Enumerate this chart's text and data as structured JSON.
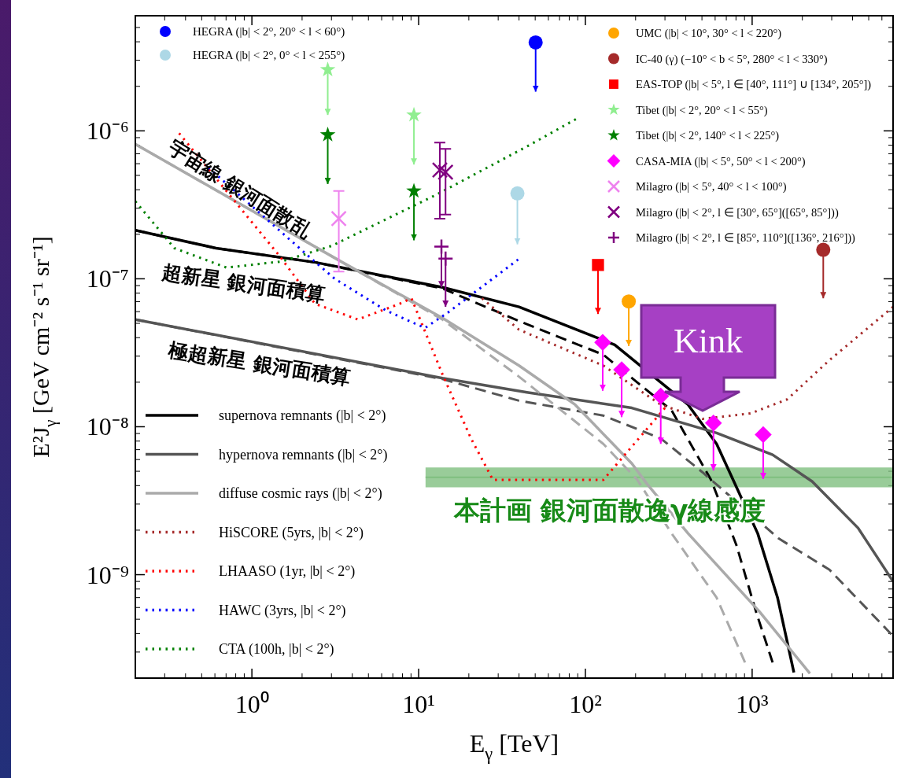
{
  "chart_data": {
    "type": "line",
    "log": "xy",
    "xlim": [
      0.2,
      7000
    ],
    "ylim": [
      2e-10,
      6e-06
    ],
    "xticks": [
      {
        "value": 1,
        "label": "10⁰"
      },
      {
        "value": 10,
        "label": "10¹"
      },
      {
        "value": 100,
        "label": "10²"
      },
      {
        "value": 1000,
        "label": "10³"
      }
    ],
    "yticks": [
      {
        "value": 1e-09,
        "label": "10⁻⁹"
      },
      {
        "value": 1e-08,
        "label": "10⁻⁸"
      },
      {
        "value": 1e-07,
        "label": "10⁻⁷"
      },
      {
        "value": 1e-06,
        "label": "10⁻⁶"
      }
    ],
    "xlabel": "E$_{γ}$ [TeV]",
    "ylabel": "E²J$_{γ}$ [GeV cm⁻² s⁻¹ sr⁻¹]",
    "legend": "top right",
    "series": [
      {
        "name": "supernova remnants (|b| < 2°)",
        "line_style": "solid",
        "color": "#000000",
        "x": [
          0.2,
          0.61,
          2.42,
          13.9,
          40,
          150,
          413,
          612,
          769,
          1080,
          1420,
          1780
        ],
        "values": [
          2.13e-07,
          1.61e-07,
          1.29e-07,
          8.75e-08,
          6.46e-08,
          3.58e-08,
          1.41e-08,
          7.66e-09,
          4.37e-09,
          1.9e-09,
          7e-10,
          2.18e-10
        ]
      },
      {
        "line_style": "dashed",
        "color": "#000000",
        "x": [
          0.2,
          0.61,
          2.42,
          13.9,
          40,
          128,
          329,
          567,
          804,
          1056,
          1327
        ],
        "values": [
          2.13e-07,
          1.61e-07,
          1.29e-07,
          8.6e-08,
          5.18e-08,
          3.07e-08,
          1.29e-08,
          4.37e-09,
          1.59e-09,
          5.6e-10,
          2.55e-10
        ]
      },
      {
        "name": "hypernova remnants (|b| < 2°)",
        "line_style": "solid",
        "color": "#555555",
        "x": [
          0.2,
          13.9,
          44.6,
          190,
          612,
          1327,
          2290,
          4315,
          7000
        ],
        "values": [
          5.31e-08,
          2.13e-08,
          1.71e-08,
          1.34e-08,
          9.08e-09,
          6.46e-09,
          4.27e-09,
          2.07e-09,
          9e-10
        ]
      },
      {
        "line_style": "dashed",
        "color": "#555555",
        "x": [
          0.2,
          13.9,
          40,
          128,
          283,
          503,
          1450,
          2910,
          6830
        ],
        "values": [
          5.31e-08,
          2.1e-08,
          1.5e-08,
          1.19e-08,
          8.34e-09,
          4.93e-09,
          1.75e-09,
          1.08e-09,
          3.96e-10
        ]
      },
      {
        "name": "diffuse cosmic rays (|b| < 2°)",
        "line_style": "solid",
        "color": "#aaaaaa",
        "x": [
          0.2,
          3.5,
          13.9,
          40,
          86.8,
          190,
          232,
          413,
          1105,
          2220
        ],
        "values": [
          8.13e-07,
          1.29e-07,
          5.43e-08,
          2.59e-08,
          1.41e-08,
          5.64e-09,
          4.16e-09,
          1.9e-09,
          5.64e-10,
          2.15e-10
        ]
      },
      {
        "line_style": "dashed",
        "color": "#aaaaaa",
        "x": [
          0.2,
          3.5,
          13.9,
          40,
          128,
          205,
          329,
          612,
          906
        ],
        "values": [
          8.13e-07,
          1.29e-07,
          5.3e-08,
          2.18e-08,
          7.66e-09,
          4.37e-09,
          1.9e-09,
          7e-10,
          2.55e-10
        ]
      },
      {
        "name": "HiSCORE (5yrs, |b| < 2°)",
        "line_style": "dotted",
        "color": "#a52a2a",
        "x": [
          24,
          40,
          128,
          283,
          503,
          977,
          1620,
          2910,
          7000
        ],
        "values": [
          7.38e-08,
          4.53e-08,
          2.59e-08,
          1.41e-08,
          1.13e-08,
          1.23e-08,
          1.53e-08,
          2.82e-08,
          6.46e-08
        ]
      },
      {
        "name": "LHAASO (1yr, |b| < 2°)",
        "line_style": "dotted",
        "color": "#ff0000",
        "x": [
          0.366,
          1.47,
          2.39,
          4.32,
          7.7,
          9.06,
          13.9,
          20.6,
          27.9,
          128,
          300
        ],
        "values": [
          9.64e-07,
          1.42e-07,
          6.78e-08,
          5.31e-08,
          6.78e-08,
          7.38e-08,
          2.26e-08,
          8.34e-09,
          4.37e-09,
          4.37e-09,
          1.34e-08
        ]
      },
      {
        "name": "HAWC (3yrs, |b| < 2°)",
        "line_style": "dotted",
        "color": "#0000ff",
        "x": [
          0.548,
          2.27,
          3.14,
          6.32,
          10.9,
          15,
          39.5
        ],
        "values": [
          5.64e-07,
          1.37e-07,
          1e-07,
          6.14e-08,
          4.65e-08,
          5.92e-08,
          1.35e-07
        ]
      },
      {
        "name": "CTA (100h, |b| < 2°)",
        "line_style": "dotted",
        "color": "#008000",
        "x": [
          0.2,
          0.343,
          0.705,
          1.51,
          3.01,
          12.4,
          44.6,
          87.7
        ],
        "values": [
          3.34e-07,
          1.61e-07,
          1.19e-07,
          1.31e-07,
          1.67e-07,
          3.64e-07,
          7.84e-07,
          1.2e-06
        ]
      },
      {
        "line_style": "solid",
        "color": "#7fbf7f",
        "x": [
          11,
          7000
        ],
        "values": [
          4.55e-09,
          4.55e-09
        ],
        "lower": [
          3.9e-09,
          3.9e-09
        ],
        "upper": [
          5.3e-09,
          5.3e-09
        ]
      },
      {
        "name": "HEGRA (|b| < 2°, 20° < l < 60°)",
        "type": "scatter",
        "marker": "circle",
        "color": "#0000ff",
        "x": [
          50.3
        ],
        "values": [
          3.96e-06
        ],
        "errors": [
          [
            1.84e-06,
            3.96e-06
          ]
        ]
      },
      {
        "name": "HEGRA (|b| < 2°, 0° < l < 255°)",
        "type": "scatter",
        "marker": "circle",
        "color": "#add8e6",
        "x": [
          39.1
        ],
        "values": [
          3.78e-07
        ],
        "errors": [
          [
            1.71e-07,
            3.78e-07
          ]
        ]
      },
      {
        "name": "UMC (|b| < 10°, 30° < l < 220°)",
        "type": "scatter",
        "marker": "circle",
        "color": "#ffa500",
        "x": [
          182
        ],
        "values": [
          7.03e-08
        ],
        "errors": [
          [
            3.51e-08,
            7.03e-08
          ]
        ]
      },
      {
        "name": "IC-40 (γ) (−10° < b < 5°, 280° < l < 330°)",
        "type": "scatter",
        "marker": "circle",
        "color": "#a52a2a",
        "x": [
          2670
        ],
        "values": [
          1.57e-07
        ],
        "errors": [
          [
            7.38e-08,
            1.57e-07
          ]
        ]
      },
      {
        "name": "EAS-TOP (|b| < 5°, l ∈ [40°, 111°] ∪ [134°, 205°])",
        "type": "scatter",
        "marker": "square",
        "color": "#ff0000",
        "x": [
          119
        ],
        "values": [
          1.24e-07
        ],
        "errors": [
          [
            5.78e-08,
            1.24e-07
          ]
        ]
      },
      {
        "name": "Tibet (|b| < 2°, 20° < l < 55°)",
        "type": "scatter",
        "marker": "star",
        "color": "#90ee90",
        "x": [
          2.85,
          9.37
        ],
        "values": [
          2.59e-06,
          1.28e-06
        ],
        "errors": [
          [
            1.28e-06,
            2.59e-06
          ],
          [
            5.92e-07,
            1.28e-06
          ]
        ]
      },
      {
        "name": "Tibet (|b| < 2°, 140° < l < 225°)",
        "type": "scatter",
        "marker": "star",
        "color": "#008000",
        "x": [
          2.85,
          9.37
        ],
        "values": [
          9.4e-07,
          3.92e-07
        ],
        "errors": [
          [
            4.37e-07,
            9.4e-07
          ],
          [
            1.82e-07,
            3.92e-07
          ]
        ]
      },
      {
        "name": "CASA-MIA (|b| < 5°, 50° < l < 200°)",
        "type": "scatter",
        "marker": "diamond",
        "color": "#ff00ff",
        "x": [
          127,
          165,
          283,
          586,
          1165
        ],
        "values": [
          3.72e-08,
          2.43e-08,
          1.61e-08,
          1.06e-08,
          8.85e-09
        ],
        "errors": [
          [
            1.75e-08,
            3.72e-08
          ],
          [
            1.16e-08,
            2.43e-08
          ],
          [
            7.66e-09,
            1.61e-08
          ],
          [
            5.06e-09,
            1.06e-08
          ],
          [
            4.43e-09,
            8.85e-09
          ]
        ]
      },
      {
        "name": "Milagro (|b| < 5°, 40° < l < 100°)",
        "type": "scatter",
        "marker": "cross",
        "color": "#ee82ee",
        "x": [
          3.32
        ],
        "values": [
          2.55e-07
        ],
        "errors": [
          [
            1.12e-07,
            3.92e-07
          ]
        ]
      },
      {
        "name": "Milagro (|b| < 2°, l ∈ [30°, 65°]([65°, 85°]))",
        "type": "scatter",
        "marker": "cross",
        "color": "#800080",
        "x": [
          13.4,
          14.5
        ],
        "values": [
          5.43e-07,
          5.25e-07
        ],
        "errors": [
          [
            2.55e-07,
            8.33e-07
          ],
          [
            2.72e-07,
            7.55e-07
          ]
        ]
      },
      {
        "name": "Milagro (|b| < 2°, l ∈ [85°, 110°]([136°, 216°]))",
        "type": "scatter",
        "marker": "plus",
        "color": "#800080",
        "x": [
          13.7,
          14.5
        ],
        "values": [
          1.65e-07,
          1.37e-07
        ],
        "errors": [
          [
            8.75e-08,
            1.65e-07
          ],
          [
            6.46e-08,
            1.37e-07
          ]
        ]
      }
    ],
    "annotations": [
      "宇宙線 銀河面散乱",
      "超新星 銀河面積算",
      "極超新星 銀河面積算",
      "本計画 銀河面散逸γ線感度",
      "Kink"
    ]
  }
}
